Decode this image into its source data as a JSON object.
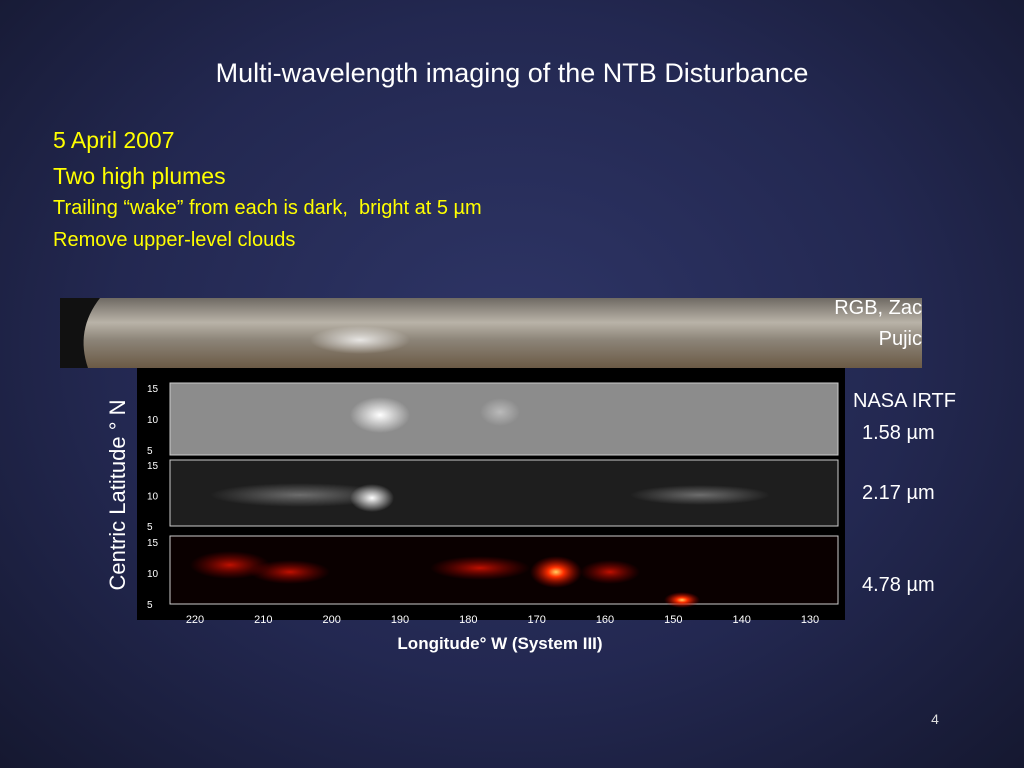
{
  "slide": {
    "title": "Multi-wavelength imaging of the NTB Disturbance",
    "bullets": [
      "5 April 2007",
      "Two high plumes",
      "Trailing “wake” from each is dark,  bright at 5 µm",
      "Remove upper-level clouds"
    ],
    "rgb_label": [
      "RGB, Zac",
      "Pujic"
    ],
    "irtf_label": [
      "NASA IRTF",
      "1.58 µm"
    ],
    "band_labels": [
      "2.17 µm",
      "4.78 µm"
    ],
    "panel_yticks": [
      "15",
      "10",
      "5"
    ],
    "xticks": [
      "220",
      "210",
      "200",
      "190",
      "180",
      "170",
      "160",
      "150",
      "140",
      "130"
    ],
    "ylabel": "Centric Latitude °  N",
    "xlabel": "Longitude°  W (System III)",
    "page_number": "4"
  }
}
